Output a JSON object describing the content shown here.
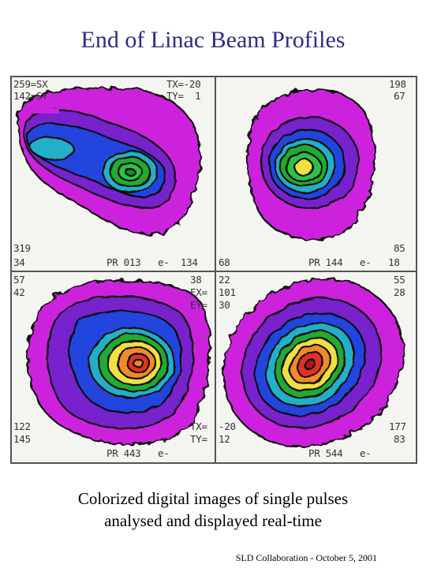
{
  "title": "End of Linac Beam Profiles",
  "caption": {
    "line1": "Colorized digital images of single pulses",
    "line2": "analysed and displayed real-time"
  },
  "footer": "SLD Collaboration - October 5, 2001",
  "panels": {
    "top_left": {
      "tl1": "259=SX",
      "tl2": "142=SY",
      "tr1": "TX=-20",
      "tr2": "TY=  1",
      "bl1": "319",
      "bl2": "34",
      "bottom": "PR 013   e-  134"
    },
    "top_right": {
      "tr1": "198",
      "tr2": "67",
      "br1": "85",
      "bl2": "68",
      "bottom": "PR 144   e-   18"
    },
    "bottom_left": {
      "tl1": "57",
      "tl2": "42",
      "tr1": "38",
      "tr2": "EX=",
      "tr3": "EY=",
      "bl1": "122",
      "bl2": "145",
      "tr_b1": "TX=",
      "tr_b2": "TY=",
      "bottom": "PR 443   e-"
    },
    "bottom_right": {
      "tl1": "22",
      "tl2": "101",
      "tl3": "30",
      "tr1": "55",
      "tr2": "28",
      "bl1": "-20",
      "bl2": "12",
      "br1": "177",
      "br2": "83",
      "bottom": "PR 544   e-"
    }
  },
  "colors": {
    "magenta": "#cc22dd",
    "violet": "#7722cc",
    "blue": "#2244dd",
    "cyan": "#22b0c8",
    "green": "#22aa33",
    "yellow": "#f0e040",
    "orange": "#f08a2a",
    "red": "#e03020"
  }
}
